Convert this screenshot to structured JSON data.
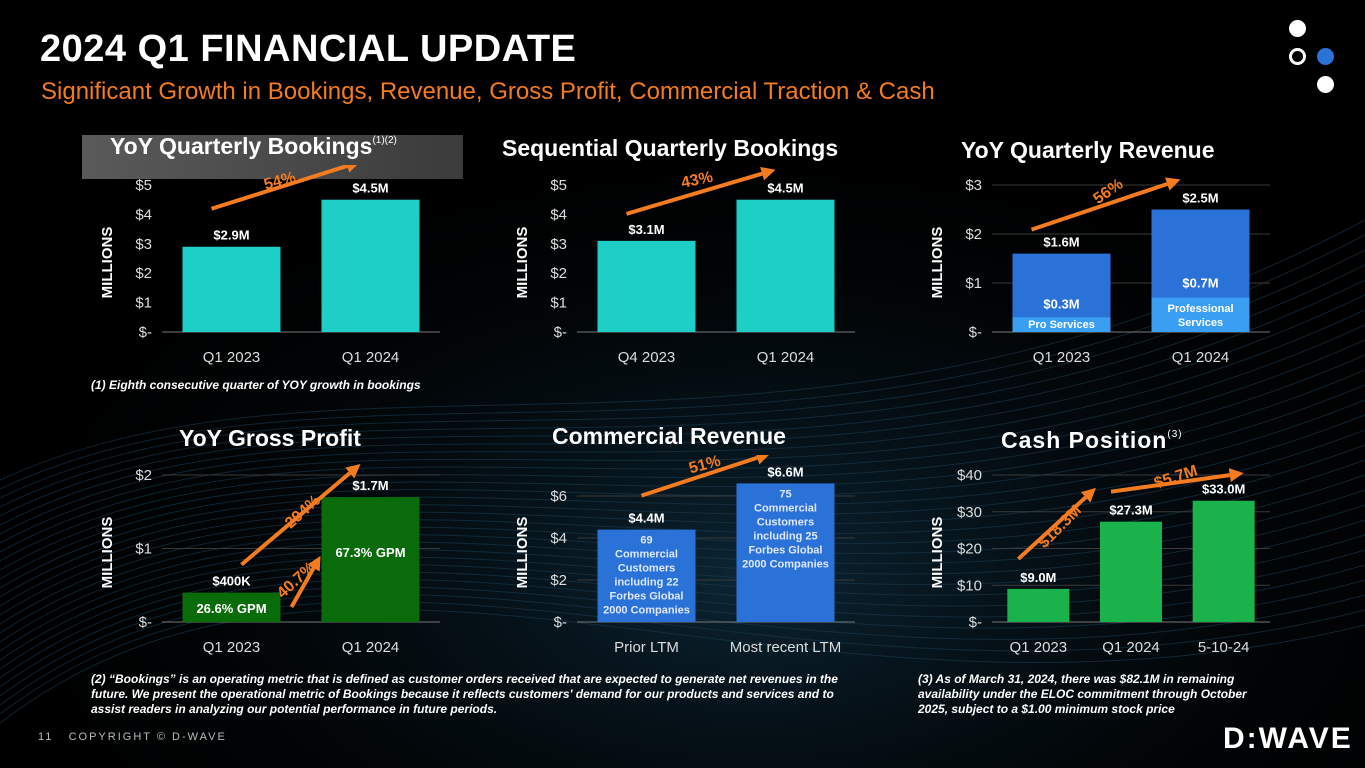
{
  "header": {
    "title": "2024 Q1 FINANCIAL UPDATE",
    "subtitle": "Significant Growth in Bookings, Revenue, Gross Profit, Commercial Traction & Cash"
  },
  "footer": {
    "page_number": "11",
    "copyright": "COPYRIGHT © D-WAVE",
    "logo_text": "D:WAVE"
  },
  "colors": {
    "accent_orange": "#f47b20",
    "teal": "#1ecfc8",
    "revenue_blue": "#2b72d8",
    "services_blue": "#3a9ef2",
    "gp_dark_green": "#0a6b0a",
    "cash_green": "#1ab24a"
  },
  "footnotes": {
    "note1": "(1)   Eighth consecutive quarter of YOY growth in bookings",
    "note2": "(2) “Bookings” is an operating metric that is defined as customer orders received that are expected to generate net revenues in the future. We present the operational metric of Bookings because it reflects customers' demand for our products and services and to assist readers in analyzing our potential performance in future periods.",
    "note3": "(3) As of March 31, 2024, there was $82.1M in remaining availability under the ELOC commitment through October 2025, subject to a $1.00 minimum stock price"
  },
  "chart_data": [
    {
      "id": "yoy-bookings",
      "type": "bar",
      "title": "YoY Quarterly Bookings",
      "title_sup": "(1)(2)",
      "ylabel": "MILLIONS",
      "categories": [
        "Q1 2023",
        "Q1 2024"
      ],
      "values": [
        2.9,
        4.5
      ],
      "data_labels": [
        "$2.9M",
        "$4.5M"
      ],
      "ylim": [
        0,
        5
      ],
      "yticks": [
        0,
        1,
        2,
        3,
        4,
        5
      ],
      "ytick_labels": [
        "$-",
        "$1",
        "$2",
        "$3",
        "$4",
        "$5"
      ],
      "growth_label": "54%",
      "grid": false
    },
    {
      "id": "seq-bookings",
      "type": "bar",
      "title": "Sequential Quarterly Bookings",
      "ylabel": "MILLIONS",
      "categories": [
        "Q4 2023",
        "Q1 2024"
      ],
      "values": [
        3.1,
        4.5
      ],
      "data_labels": [
        "$3.1M",
        "$4.5M"
      ],
      "ylim": [
        0,
        5
      ],
      "yticks": [
        0,
        1,
        2,
        3,
        4,
        5
      ],
      "ytick_labels": [
        "$-",
        "$1",
        "$2",
        "$3",
        "$4",
        "$5"
      ],
      "growth_label": "43%",
      "grid": false
    },
    {
      "id": "yoy-revenue",
      "type": "bar",
      "stacked": true,
      "title": "YoY Quarterly Revenue",
      "ylabel": "MILLIONS",
      "categories": [
        "Q1 2023",
        "Q1 2024"
      ],
      "totals": [
        1.6,
        2.5
      ],
      "total_labels": [
        "$1.6M",
        "$2.5M"
      ],
      "series": [
        {
          "name": "Pro Services",
          "values": [
            0.3,
            0.7
          ],
          "data_labels": [
            "$0.3M",
            "$0.7M"
          ],
          "segment_labels": [
            "Pro Services",
            "Professional Services"
          ]
        }
      ],
      "ylim": [
        0,
        3
      ],
      "yticks": [
        0,
        1,
        2,
        3
      ],
      "ytick_labels": [
        "$-",
        "$1",
        "$2",
        "$3"
      ],
      "growth_label": "56%",
      "grid": true
    },
    {
      "id": "yoy-gross-profit",
      "type": "bar",
      "title": "YoY Gross Profit",
      "ylabel": "MILLIONS",
      "categories": [
        "Q1 2023",
        "Q1 2024"
      ],
      "values": [
        0.4,
        1.7
      ],
      "data_labels": [
        "$400K",
        "$1.7M"
      ],
      "inner_labels": [
        "26.6% GPM",
        "67.3% GPM"
      ],
      "ylim": [
        0,
        2
      ],
      "yticks": [
        0,
        1,
        2
      ],
      "ytick_labels": [
        "$-",
        "$1",
        "$2"
      ],
      "growth_label": "294%",
      "gpm_growth_label": "40.7%",
      "grid": true
    },
    {
      "id": "commercial-revenue",
      "type": "bar",
      "title": "Commercial Revenue",
      "ylabel": "MILLIONS",
      "categories": [
        "Prior LTM",
        "Most recent LTM"
      ],
      "values": [
        4.4,
        6.6
      ],
      "data_labels": [
        "$4.4M",
        "$6.6M"
      ],
      "inner_labels": [
        "69 Commercial Customers including 22 Forbes Global 2000 Companies",
        "75 Commercial Customers including 25 Forbes Global 2000 Companies"
      ],
      "inner_label_lines": [
        [
          "69",
          "Commercial",
          "Customers",
          "including 22",
          "Forbes Global",
          "2000 Companies"
        ],
        [
          "75",
          "Commercial",
          "Customers",
          "including 25",
          "Forbes Global",
          "2000 Companies"
        ]
      ],
      "ylim": [
        0,
        7
      ],
      "yticks": [
        0,
        2,
        4,
        6
      ],
      "ytick_labels": [
        "$-",
        "$2",
        "$4",
        "$6"
      ],
      "growth_label": "51%",
      "grid": true
    },
    {
      "id": "cash-position",
      "type": "bar",
      "title": "Cash Position",
      "title_sup": "(3)",
      "ylabel": "MILLIONS",
      "categories": [
        "Q1 2023",
        "Q1 2024",
        "5-10-24"
      ],
      "values": [
        9.0,
        27.3,
        33.0
      ],
      "data_labels": [
        "$9.0M",
        "$27.3M",
        "$33.0M"
      ],
      "ylim": [
        0,
        40
      ],
      "yticks": [
        0,
        10,
        20,
        30,
        40
      ],
      "ytick_labels": [
        "$-",
        "$10",
        "$20",
        "$30",
        "$40"
      ],
      "growth_labels": [
        "$18.3M",
        "$5.7M"
      ],
      "grid": true
    }
  ]
}
